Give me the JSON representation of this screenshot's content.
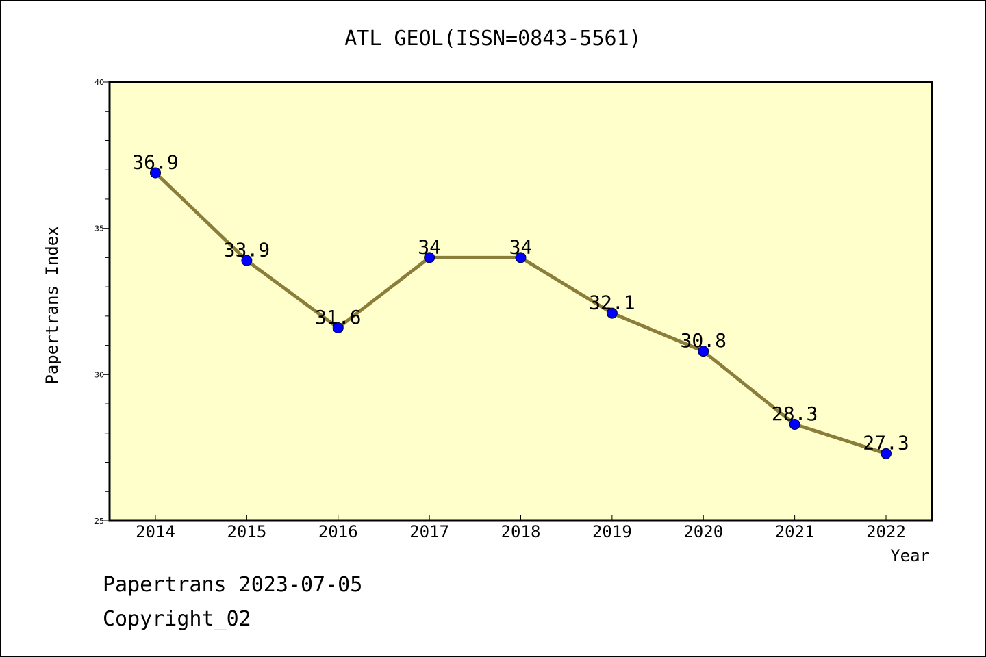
{
  "chart_data": {
    "type": "line",
    "title": "ATL GEOL(ISSN=0843-5561)",
    "xlabel": "Year",
    "ylabel": "Papertrans Index",
    "categories": [
      "2014",
      "2015",
      "2016",
      "2017",
      "2018",
      "2019",
      "2020",
      "2021",
      "2022"
    ],
    "values": [
      36.9,
      33.9,
      31.6,
      34,
      34,
      32.1,
      30.8,
      28.3,
      27.3
    ],
    "value_labels": [
      "36.9",
      "33.9",
      "31.6",
      "34",
      "34",
      "32.1",
      "30.8",
      "28.3",
      "27.3"
    ],
    "ylim": [
      25,
      40
    ],
    "yticks": [
      25,
      30,
      35,
      40
    ],
    "ytick_labels": [
      "25",
      "30",
      "35",
      "40"
    ],
    "grid": false,
    "colors": {
      "plot_background": "#ffffcc",
      "line": "#8b7d3a",
      "marker": "#0000ff"
    }
  },
  "footer": {
    "date_line": "Papertrans 2023-07-05",
    "copyright": "Copyright_02"
  }
}
